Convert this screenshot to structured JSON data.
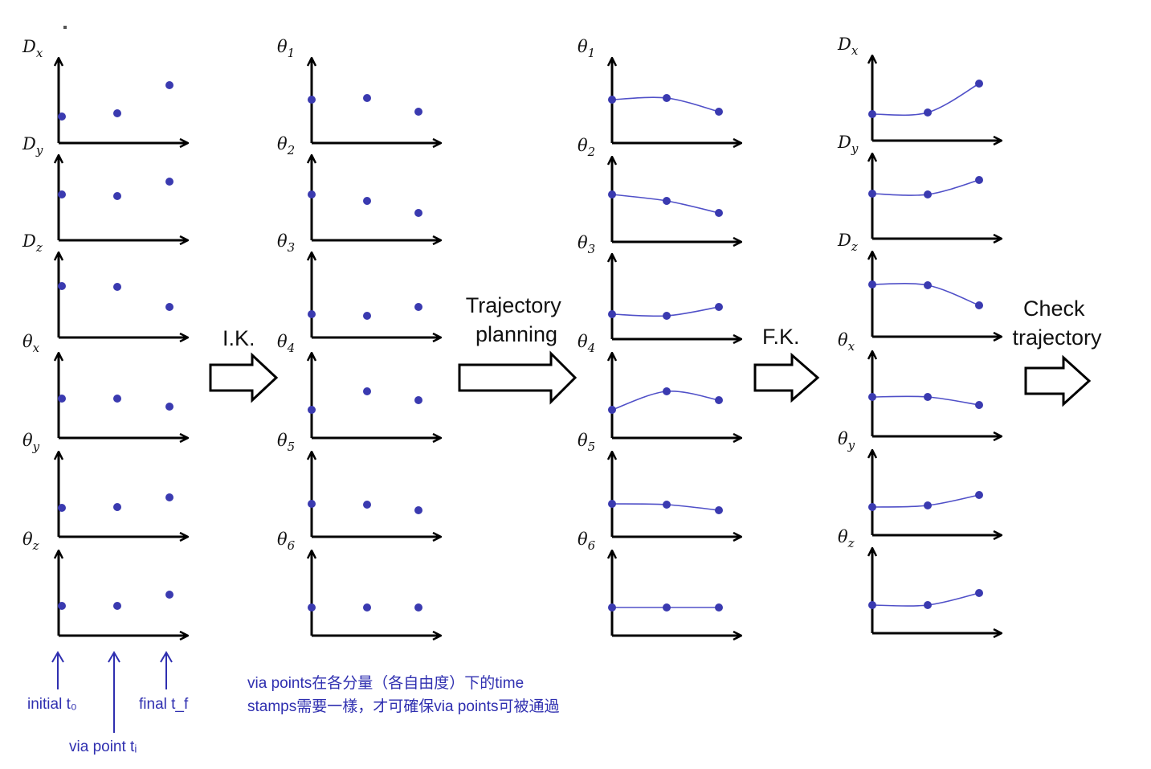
{
  "colors": {
    "axis": "#000000",
    "point": "#3a3ab0",
    "curve": "#5050c8",
    "note": "#2f2fb0"
  },
  "columns": [
    {
      "id": "cartesian-points",
      "labels": [
        "D_x",
        "D_y",
        "D_z",
        "θ_x",
        "θ_y",
        "θ_z"
      ],
      "curves": false
    },
    {
      "id": "joint-points",
      "labels": [
        "θ_1",
        "θ_2",
        "θ_3",
        "θ_4",
        "θ_5",
        "θ_6"
      ],
      "curves": false
    },
    {
      "id": "joint-trajectories",
      "labels": [
        "θ_1",
        "θ_2",
        "θ_3",
        "θ_4",
        "θ_5",
        "θ_6"
      ],
      "curves": true
    },
    {
      "id": "cartesian-trajectories",
      "labels": [
        "D_x",
        "D_y",
        "D_z",
        "θ_x",
        "θ_y",
        "θ_z"
      ],
      "curves": true
    }
  ],
  "arrows": [
    {
      "id": "ik",
      "label": "I.K."
    },
    {
      "id": "trajectory-planning",
      "label_lines": [
        "Trajectory",
        "planning"
      ]
    },
    {
      "id": "fk",
      "label": "F.K."
    },
    {
      "id": "check-trajectory",
      "label_lines": [
        "Check",
        "trajectory"
      ]
    }
  ],
  "time_labels": {
    "initial": "initial t₀",
    "via": "via point tᵢ",
    "final": "final t_f"
  },
  "note": {
    "line1": "via points在各分量（各自由度）下的time",
    "line2": "stamps需要一樣，才可確保via points可被通過"
  }
}
